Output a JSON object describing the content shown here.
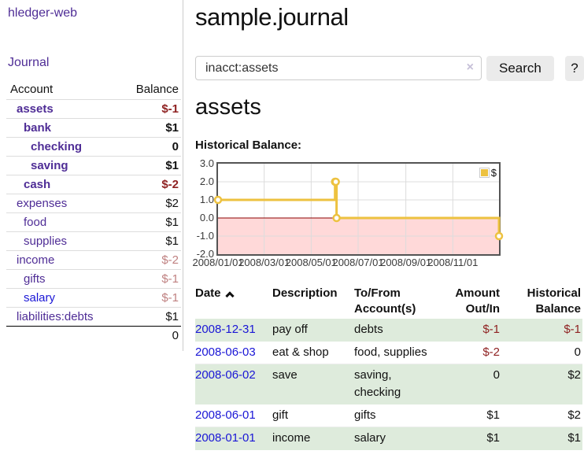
{
  "app": {
    "brand": "hledger-web",
    "nav_journal": "Journal"
  },
  "colors": {
    "link_purple": "#4f2d96",
    "link_blue": "#1a16d6",
    "negative": "#8f2222",
    "negative_muted": "#bf8080",
    "shaded_row_green": "#deebdc",
    "series_gold": "#edc240",
    "negative_region_pink": "#ffd9d9",
    "zero_line_red": "#8b0000"
  },
  "sidebar": {
    "accounts_header": {
      "account": "Account",
      "balance": "Balance"
    },
    "accounts": [
      {
        "name": "assets",
        "indent": 0,
        "bold": true,
        "link_color": "#4f2d96",
        "balance": "$-1",
        "balance_style": "neg"
      },
      {
        "name": "bank",
        "indent": 1,
        "bold": true,
        "link_color": "#4f2d96",
        "balance": "$1",
        "balance_style": ""
      },
      {
        "name": "checking",
        "indent": 2,
        "bold": true,
        "link_color": "#4f2d96",
        "balance": "0",
        "balance_style": ""
      },
      {
        "name": "saving",
        "indent": 2,
        "bold": true,
        "link_color": "#4f2d96",
        "balance": "$1",
        "balance_style": ""
      },
      {
        "name": "cash",
        "indent": 1,
        "bold": true,
        "link_color": "#4f2d96",
        "balance": "$-2",
        "balance_style": "neg"
      },
      {
        "name": "expenses",
        "indent": 0,
        "bold": false,
        "link_color": "#4f2d96",
        "balance": "$2",
        "balance_style": ""
      },
      {
        "name": "food",
        "indent": 1,
        "bold": false,
        "link_color": "#4f2d96",
        "balance": "$1",
        "balance_style": ""
      },
      {
        "name": "supplies",
        "indent": 1,
        "bold": false,
        "link_color": "#4f2d96",
        "balance": "$1",
        "balance_style": ""
      },
      {
        "name": "income",
        "indent": 0,
        "bold": false,
        "link_color": "#4f2d96",
        "balance": "$-2",
        "balance_style": "neg-muted"
      },
      {
        "name": "gifts",
        "indent": 1,
        "bold": false,
        "link_color": "#4f2d96",
        "balance": "$-1",
        "balance_style": "neg-muted"
      },
      {
        "name": "salary",
        "indent": 1,
        "bold": false,
        "link_color": "#1a16d6",
        "balance": "$-1",
        "balance_style": "neg-muted"
      },
      {
        "name": "liabilities:debts",
        "indent": 0,
        "bold": false,
        "link_color": "#4f2d96",
        "balance": "$1",
        "balance_style": ""
      }
    ],
    "total": "0"
  },
  "header": {
    "title": "sample.journal"
  },
  "search": {
    "value": "inacct:assets",
    "clear_icon": "×",
    "button": "Search",
    "help_button": "?"
  },
  "account_page": {
    "heading": "assets",
    "chart_label": "Historical Balance:"
  },
  "chart_data": {
    "type": "line",
    "step": true,
    "title": "Historical Balance:",
    "series": [
      {
        "name": "$",
        "color": "#edc240",
        "points": [
          {
            "x": "2008-01-01",
            "y": 1
          },
          {
            "x": "2008-06-01",
            "y": 2
          },
          {
            "x": "2008-06-02",
            "y": 2
          },
          {
            "x": "2008-06-03",
            "y": 0
          },
          {
            "x": "2008-12-31",
            "y": -1
          }
        ]
      }
    ],
    "xlim": [
      "2008-01-01",
      "2008-12-31"
    ],
    "ylim": [
      -2,
      3
    ],
    "y_ticks": [
      {
        "label": "3.0",
        "value": 3
      },
      {
        "label": "2.0",
        "value": 2
      },
      {
        "label": "1.0",
        "value": 1
      },
      {
        "label": "0.0",
        "value": 0
      },
      {
        "label": "-1.0",
        "value": -1
      },
      {
        "label": "-2.0",
        "value": -2
      }
    ],
    "x_ticks": [
      {
        "label": "2008/01/01",
        "date": "2008-01-01"
      },
      {
        "label": "2008/03/01",
        "date": "2008-03-01"
      },
      {
        "label": "2008/05/01",
        "date": "2008-05-01"
      },
      {
        "label": "2008/07/01",
        "date": "2008-07-01"
      },
      {
        "label": "2008/09/01",
        "date": "2008-09-01"
      },
      {
        "label": "2008/11/01",
        "date": "2008-11-01"
      }
    ],
    "legend": {
      "label": "$",
      "position": "top-right"
    },
    "grid": true,
    "negative_region_color": "#ffd9d9",
    "zero_line_color": "#8b0000",
    "grid_color": "#dcdcdc"
  },
  "register": {
    "columns": {
      "date": "Date",
      "description": "Description",
      "tofrom": [
        "To/From",
        "Account(s)"
      ],
      "amount": [
        "Amount",
        "Out/In"
      ],
      "balance": [
        "Historical",
        "Balance"
      ]
    },
    "rows": [
      {
        "date": "2008-12-31",
        "description": "pay off",
        "accounts": "debts",
        "amount": "$-1",
        "amount_neg": true,
        "balance": "$-1",
        "balance_neg": true,
        "shaded": true
      },
      {
        "date": "2008-06-03",
        "description": "eat & shop",
        "accounts": "food, supplies",
        "amount": "$-2",
        "amount_neg": true,
        "balance": "0",
        "balance_neg": false,
        "shaded": false
      },
      {
        "date": "2008-06-02",
        "description": "save",
        "accounts": "saving, checking",
        "amount": "0",
        "amount_neg": false,
        "balance": "$2",
        "balance_neg": false,
        "shaded": true
      },
      {
        "date": "2008-06-01",
        "description": "gift",
        "accounts": "gifts",
        "amount": "$1",
        "amount_neg": false,
        "balance": "$2",
        "balance_neg": false,
        "shaded": false
      },
      {
        "date": "2008-01-01",
        "description": "income",
        "accounts": "salary",
        "amount": "$1",
        "amount_neg": false,
        "balance": "$1",
        "balance_neg": false,
        "shaded": true
      }
    ]
  }
}
